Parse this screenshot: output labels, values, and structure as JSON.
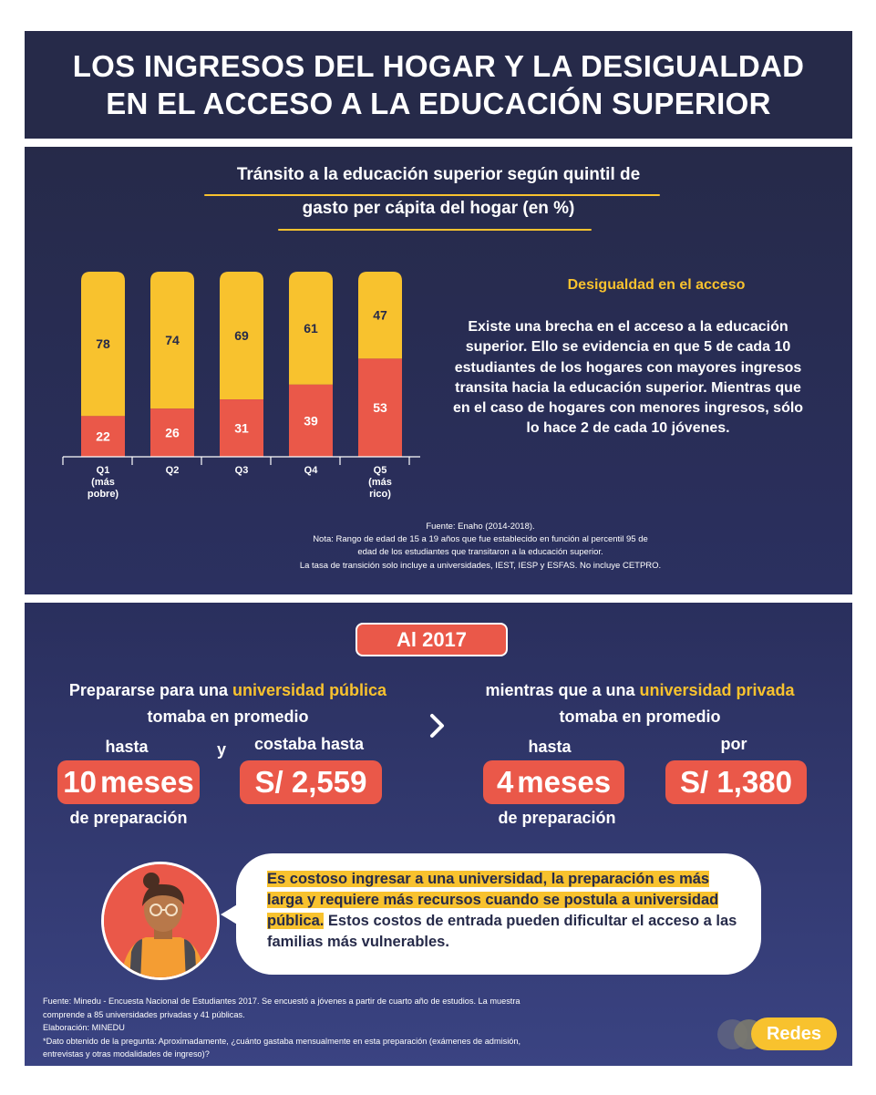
{
  "header": {
    "title_line1": "LOS INGRESOS DEL HOGAR Y LA DESIGUALDAD",
    "title_line2": "EN EL ACCESO A LA EDUCACIÓN SUPERIOR"
  },
  "chart_section": {
    "title_line1": "Tránsito a la educación superior según quintil de",
    "title_line2": "gasto per cápita del hogar (en %)",
    "side_heading": "Desigualdad en el acceso",
    "side_text": "Existe una brecha en el acceso a la educación superior. Ello se evidencia en que 5 de cada 10 estudiantes de los hogares con mayores ingresos transita hacia la educación superior. Mientras que en el caso de hogares con menores ingresos, sólo lo hace 2 de cada 10 jóvenes.",
    "notes": [
      "Fuente: Enaho (2014-2018).",
      "Nota: Rango de edad de 15 a 19 años que fue establecido en función al percentil 95 de",
      "edad de los estudiantes que transitaron a la educación superior.",
      "La tasa de transición solo incluye a universidades, IEST, IESP y ESFAS. No incluye CETPRO."
    ]
  },
  "chart_data": {
    "type": "bar",
    "stacked": true,
    "categories": [
      [
        "Q1",
        "(más",
        "pobre)"
      ],
      [
        "Q2"
      ],
      [
        "Q3"
      ],
      [
        "Q4"
      ],
      [
        "Q5",
        "(más",
        "rico)"
      ]
    ],
    "series": [
      {
        "values": [
          22,
          26,
          31,
          39,
          53
        ],
        "color": "#ea5849"
      },
      {
        "values": [
          78,
          74,
          69,
          61,
          47
        ],
        "color": "#f8c22e"
      }
    ],
    "ylim": [
      0,
      100
    ],
    "grid": false,
    "legend": "none"
  },
  "prep_section": {
    "year": "Al 2017",
    "public_pre": "Prepararse para una ",
    "public_hl": "universidad pública",
    "public_line2": "tomaba en promedio",
    "public_hasta": "hasta",
    "public_months_num": "10",
    "public_months_word": "meses",
    "public_prep": "de preparación",
    "connector": "y",
    "public_cost_label": "costaba hasta",
    "public_cost": "S/ 2,559",
    "private_pre": "mientras que a una ",
    "private_hl": "universidad privada",
    "private_line2": "tomaba en promedio",
    "private_hasta": "hasta",
    "private_months_num": "4",
    "private_months_word": "meses",
    "private_prep": "de preparación",
    "private_cost_label": "por",
    "private_cost": "S/ 1,380",
    "bubble_hl": "Es costoso ingresar a una universidad, la preparación es más larga y requiere más recursos cuando se postula a universidad pública.",
    "bubble_rest": " Estos costos de entrada pueden dificultar el acceso a las familias más vulnerables.",
    "footnotes": [
      "Fuente: Minedu - Encuesta Nacional de Estudiantes 2017. Se encuestó a jóvenes a partir de cuarto año de estudios. La muestra",
      "comprende a 85 universidades privadas y 41 públicas.",
      "Elaboración: MINEDU",
      "*Dato obtenido de la pregunta: Aproximadamente, ¿cuánto gastaba mensualmente en esta preparación (exámenes de admisión,",
      "entrevistas y otras modalidades de ingreso)?"
    ],
    "logo_text": "Redes"
  },
  "colors": {
    "navy": "#262a49",
    "yellow": "#f8c22e",
    "coral": "#ea5849"
  }
}
